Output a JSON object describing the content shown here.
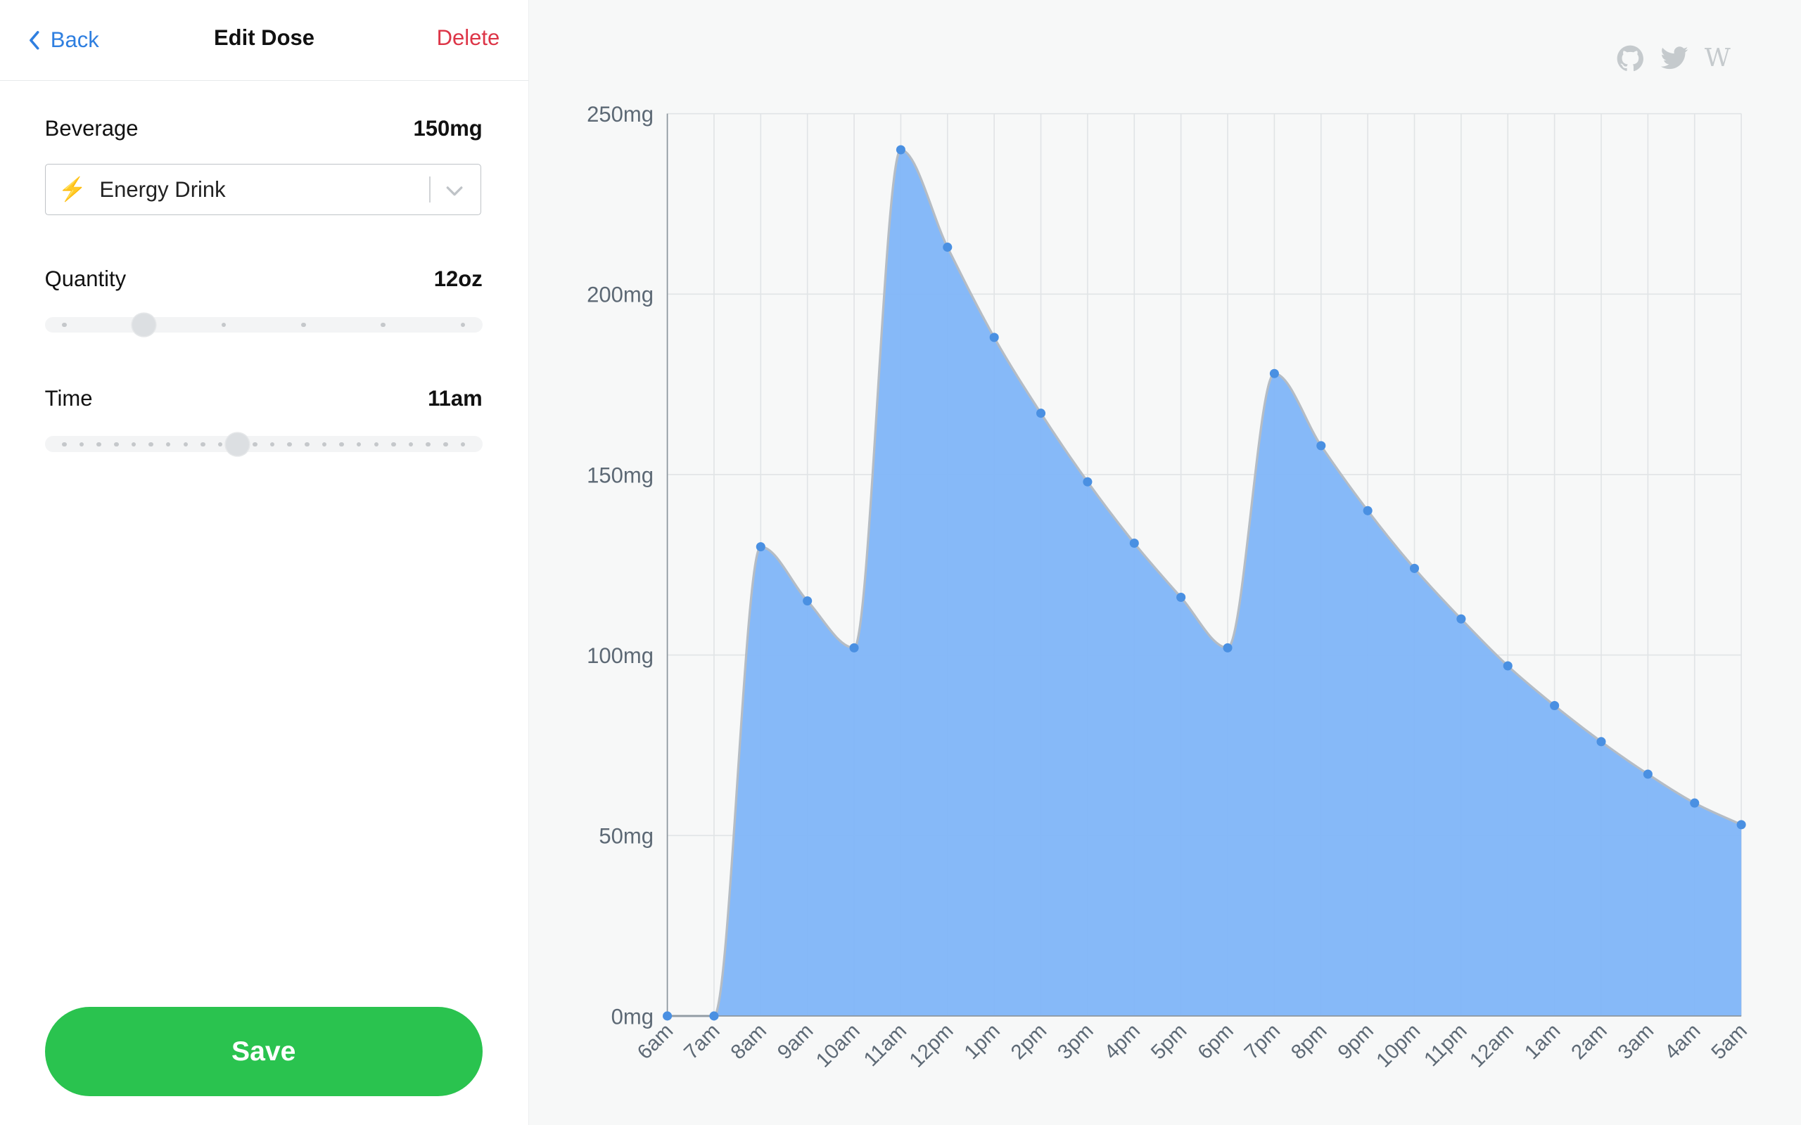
{
  "navbar": {
    "back_label": "Back",
    "title": "Edit Dose",
    "delete_label": "Delete"
  },
  "beverage": {
    "label": "Beverage",
    "value": "150mg",
    "selected": "Energy Drink",
    "icon": "lightning-bolt-icon"
  },
  "quantity": {
    "label": "Quantity",
    "value": "12oz",
    "steps": 6,
    "selected_index": 1
  },
  "time": {
    "label": "Time",
    "value": "11am",
    "steps": 24,
    "selected_index": 10
  },
  "save_label": "Save",
  "social": {
    "github_icon": "github-icon",
    "twitter_icon": "twitter-icon",
    "wikipedia": "W"
  },
  "colors": {
    "accent": "#2f7fe0",
    "danger": "#dd3547",
    "save": "#2ac34f",
    "area_fill": "#7fb5f8",
    "area_stroke": "#b5bcc4",
    "point": "#4a90e2"
  },
  "chart_data": {
    "type": "area",
    "title": "",
    "xlabel": "",
    "ylabel": "",
    "x": [
      "6am",
      "7am",
      "8am",
      "9am",
      "10am",
      "11am",
      "12pm",
      "1pm",
      "2pm",
      "3pm",
      "4pm",
      "5pm",
      "6pm",
      "7pm",
      "8pm",
      "9pm",
      "10pm",
      "11pm",
      "12am",
      "1am",
      "2am",
      "3am",
      "4am",
      "5am"
    ],
    "y_ticks": [
      "0mg",
      "50mg",
      "100mg",
      "150mg",
      "200mg",
      "250mg"
    ],
    "ylim": [
      0,
      250
    ],
    "grid": true,
    "series": [
      {
        "values": [
          0,
          0,
          130,
          115,
          102,
          240,
          213,
          188,
          167,
          148,
          131,
          116,
          102,
          178,
          158,
          140,
          124,
          110,
          97,
          86,
          76,
          67,
          59,
          53
        ]
      }
    ]
  }
}
